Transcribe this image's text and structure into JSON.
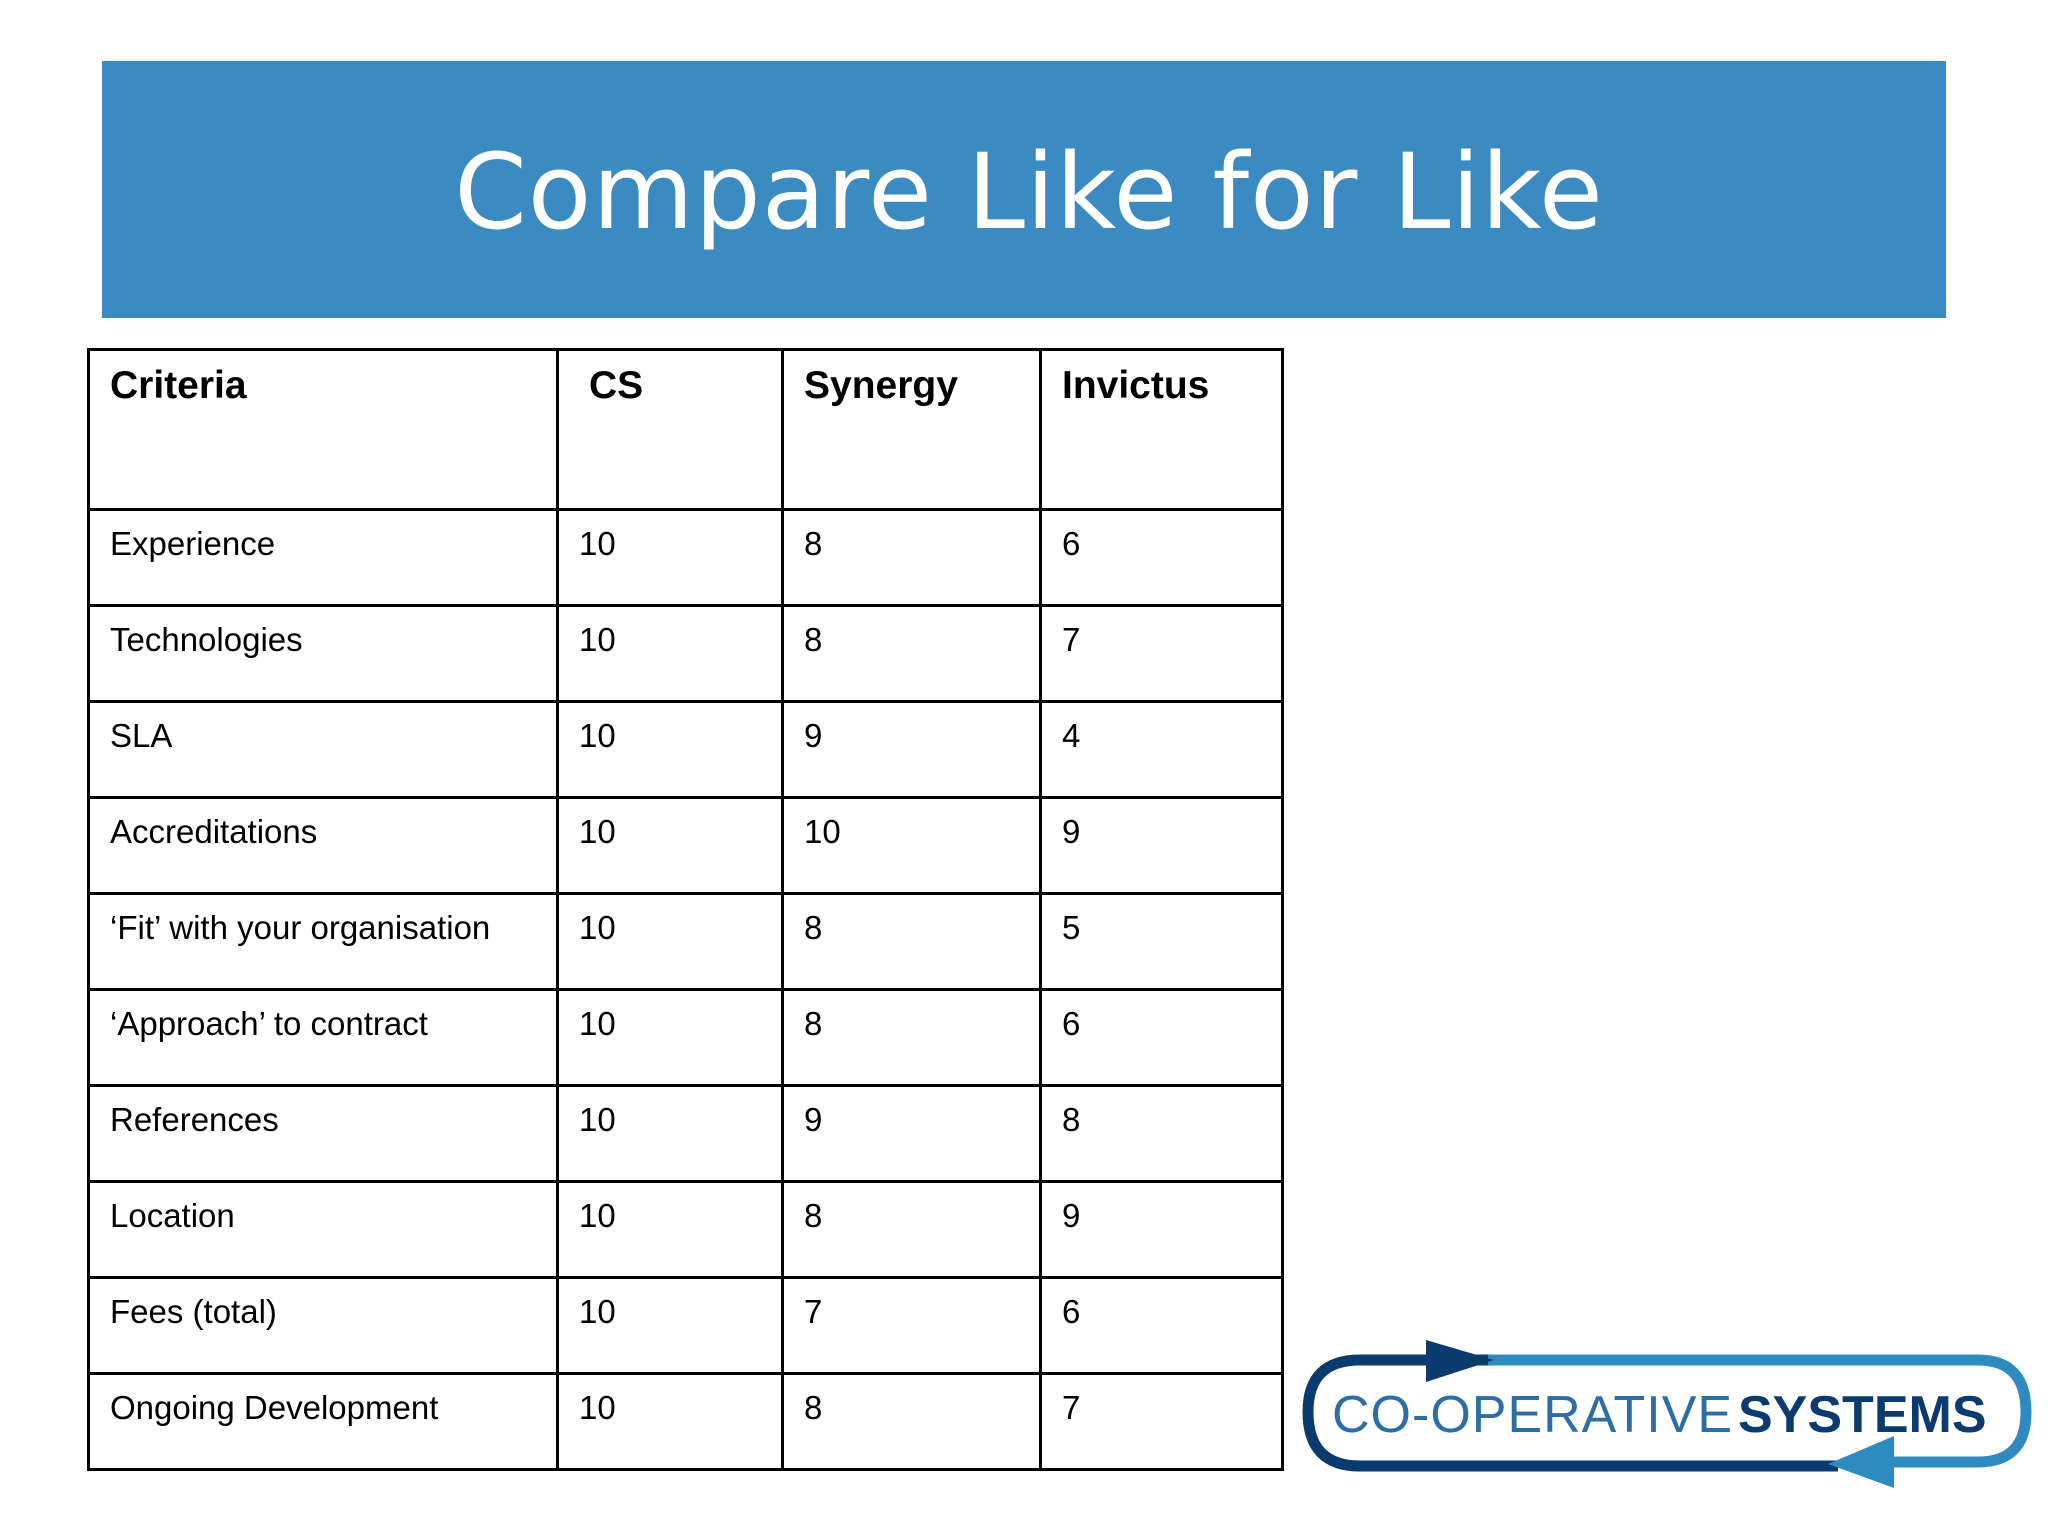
{
  "slide": {
    "title": "Compare Like for Like",
    "banner_color": "#3b8bc2"
  },
  "table": {
    "headers": [
      "Criteria",
      "CS",
      "Synergy",
      "Invictus"
    ],
    "rows": [
      [
        "Experience",
        "10",
        "8",
        "6"
      ],
      [
        "Technologies",
        "10",
        "8",
        "7"
      ],
      [
        "SLA",
        "10",
        "9",
        "4"
      ],
      [
        "Accreditations",
        "10",
        "10",
        "9"
      ],
      [
        "‘Fit’ with your organisation",
        "10",
        "8",
        "5"
      ],
      [
        "‘Approach’ to contract",
        "10",
        "8",
        "6"
      ],
      [
        "References",
        "10",
        "9",
        "8"
      ],
      [
        "Location",
        "10",
        "8",
        "9"
      ],
      [
        "Fees (total)",
        "10",
        "7",
        "6"
      ],
      [
        "Ongoing Development",
        "10",
        "8",
        "7"
      ]
    ]
  },
  "logo": {
    "text_light": "CO-OPERATIVE",
    "text_bold": "SYSTEMS",
    "dark_color": "#0b3a6e",
    "light_color": "#2e8bc0",
    "arrow_top": "arrow-right-icon",
    "arrow_bottom": "arrow-left-icon"
  }
}
